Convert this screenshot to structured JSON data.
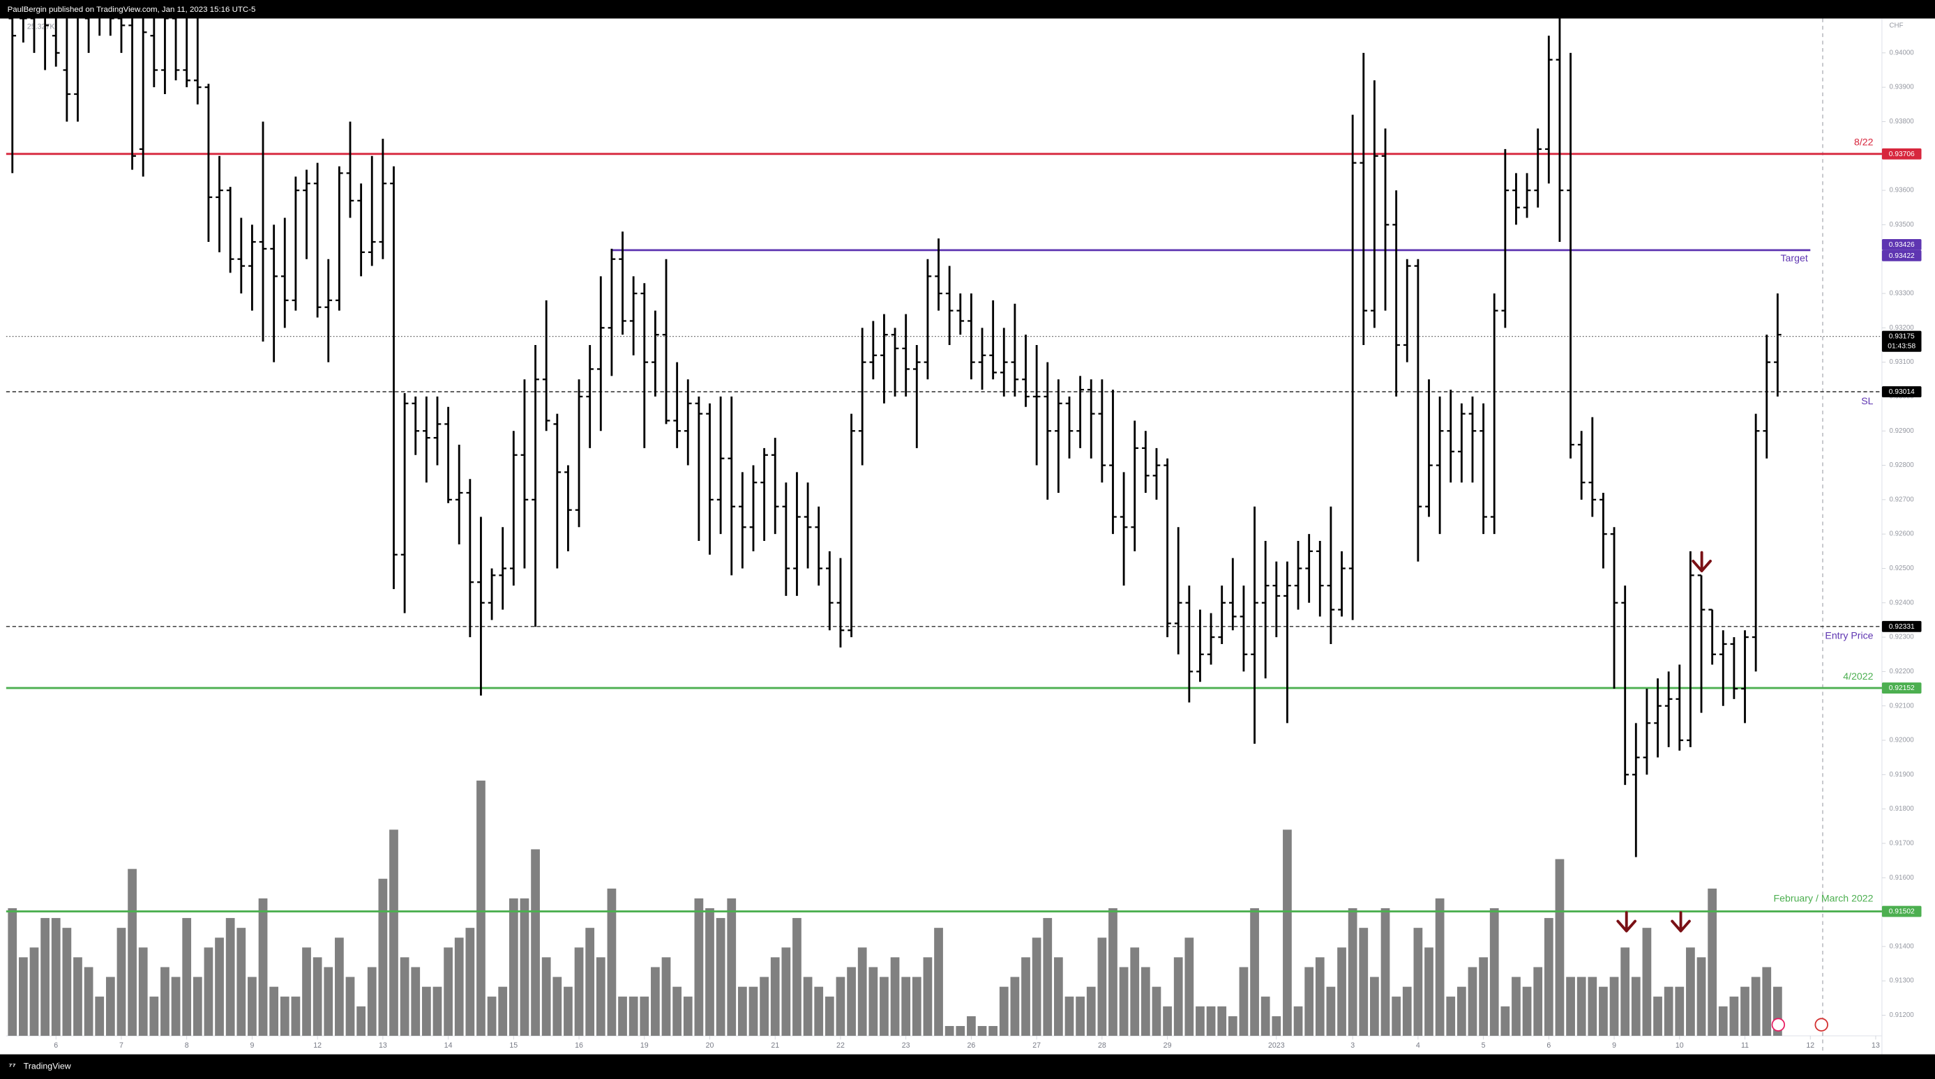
{
  "chart_data": {
    "type": "ohlc",
    "header": "PaulBergin published on TradingView.com, Jan 11, 2023 15:16 UTC-5",
    "currency": "CHF",
    "volume_label": "25.327K",
    "brand": "TradingView",
    "xlim": [
      -0.57,
      171.8
    ],
    "ylim": [
      0.9114,
      0.941
    ],
    "xticks": [
      {
        "value": 4,
        "label": "6"
      },
      {
        "value": 10,
        "label": "7"
      },
      {
        "value": 16,
        "label": "8"
      },
      {
        "value": 22,
        "label": "9"
      },
      {
        "value": 28,
        "label": "12"
      },
      {
        "value": 34,
        "label": "13"
      },
      {
        "value": 40,
        "label": "14"
      },
      {
        "value": 46,
        "label": "15"
      },
      {
        "value": 52,
        "label": "16"
      },
      {
        "value": 58,
        "label": "19"
      },
      {
        "value": 64,
        "label": "20"
      },
      {
        "value": 70,
        "label": "21"
      },
      {
        "value": 76,
        "label": "22"
      },
      {
        "value": 82,
        "label": "23"
      },
      {
        "value": 88,
        "label": "26"
      },
      {
        "value": 94,
        "label": "27"
      },
      {
        "value": 100,
        "label": "28"
      },
      {
        "value": 106,
        "label": "29"
      },
      {
        "value": 116,
        "label": "2023"
      },
      {
        "value": 123,
        "label": "3"
      },
      {
        "value": 129,
        "label": "4"
      },
      {
        "value": 135,
        "label": "5"
      },
      {
        "value": 141,
        "label": "6"
      },
      {
        "value": 147,
        "label": "9"
      },
      {
        "value": 153,
        "label": "10"
      },
      {
        "value": 159,
        "label": "11"
      },
      {
        "value": 165,
        "label": "12"
      },
      {
        "value": 171,
        "label": "13"
      }
    ],
    "yticks": [
      {
        "value": 0.912,
        "label": "0.91200"
      },
      {
        "value": 0.913,
        "label": "0.91300"
      },
      {
        "value": 0.914,
        "label": "0.91400"
      },
      {
        "value": 0.915,
        "label": "0.91500"
      },
      {
        "value": 0.916,
        "label": "0.91600"
      },
      {
        "value": 0.917,
        "label": "0.91700"
      },
      {
        "value": 0.918,
        "label": "0.91800"
      },
      {
        "value": 0.919,
        "label": "0.91900"
      },
      {
        "value": 0.92,
        "label": "0.92000"
      },
      {
        "value": 0.921,
        "label": "0.92100"
      },
      {
        "value": 0.922,
        "label": "0.92200"
      },
      {
        "value": 0.923,
        "label": "0.92300"
      },
      {
        "value": 0.924,
        "label": "0.92400"
      },
      {
        "value": 0.925,
        "label": "0.92500"
      },
      {
        "value": 0.926,
        "label": "0.92600"
      },
      {
        "value": 0.927,
        "label": "0.92700"
      },
      {
        "value": 0.928,
        "label": "0.92800"
      },
      {
        "value": 0.929,
        "label": "0.92900"
      },
      {
        "value": 0.93,
        "label": "0.93000"
      },
      {
        "value": 0.931,
        "label": "0.93100"
      },
      {
        "value": 0.932,
        "label": "0.93200"
      },
      {
        "value": 0.933,
        "label": "0.93300"
      },
      {
        "value": 0.934,
        "label": "0.93400"
      },
      {
        "value": 0.935,
        "label": "0.93500"
      },
      {
        "value": 0.936,
        "label": "0.93600"
      },
      {
        "value": 0.937,
        "label": "0.93700"
      },
      {
        "value": 0.938,
        "label": "0.93800"
      },
      {
        "value": 0.939,
        "label": "0.93900"
      },
      {
        "value": 0.94,
        "label": "0.94000"
      }
    ],
    "color": "#000000",
    "volume_color": "#808080",
    "levels": [
      {
        "value": 0.93706,
        "name": "8/22",
        "color": "#d7263d",
        "style": "solid"
      },
      {
        "value": 0.93426,
        "value2": 0.93422,
        "name": "Target",
        "color": "#5e35b1",
        "style": "solid"
      },
      {
        "value": 0.93175,
        "countdown": "01:43:58",
        "color": "#000000",
        "style": "dotted"
      },
      {
        "value": 0.93014,
        "name": "SL",
        "color": "#000000",
        "style": "dashed"
      },
      {
        "value": 0.92331,
        "name": "Entry Price",
        "color": "#000000",
        "style": "dashed"
      },
      {
        "value": 0.92152,
        "name": "4/2022",
        "color": "#4caf50",
        "style": "solid"
      },
      {
        "value": 0.91502,
        "name": "February / March 2022",
        "color": "#4caf50",
        "style": "solid"
      }
    ],
    "ohlc": [
      [
        0.941,
        0.942,
        0.9365,
        0.9405
      ],
      [
        0.941,
        0.9418,
        0.9403,
        0.941
      ],
      [
        0.941,
        0.9416,
        0.94,
        0.9412
      ],
      [
        0.9412,
        0.9418,
        0.9395,
        0.9408
      ],
      [
        0.9405,
        0.9415,
        0.9396,
        0.94
      ],
      [
        0.9395,
        0.9412,
        0.938,
        0.9388
      ],
      [
        0.9388,
        0.942,
        0.938,
        0.9412
      ],
      [
        0.941,
        0.9418,
        0.94,
        0.9412
      ],
      [
        0.9412,
        0.942,
        0.9405,
        0.9415
      ],
      [
        0.9415,
        0.9425,
        0.9405,
        0.941
      ],
      [
        0.941,
        0.942,
        0.94,
        0.9408
      ],
      [
        0.9408,
        0.9416,
        0.9366,
        0.937
      ],
      [
        0.9372,
        0.9418,
        0.9364,
        0.9406
      ],
      [
        0.9405,
        0.942,
        0.939,
        0.9395
      ],
      [
        0.9395,
        0.9418,
        0.9388,
        0.941
      ],
      [
        0.941,
        0.942,
        0.9392,
        0.9395
      ],
      [
        0.9395,
        0.9416,
        0.939,
        0.9392
      ],
      [
        0.9392,
        0.941,
        0.9385,
        0.939
      ],
      [
        0.939,
        0.9391,
        0.9345,
        0.9358
      ],
      [
        0.9358,
        0.937,
        0.9342,
        0.936
      ],
      [
        0.936,
        0.9361,
        0.9336,
        0.934
      ],
      [
        0.934,
        0.9352,
        0.933,
        0.9338
      ],
      [
        0.9338,
        0.935,
        0.9325,
        0.9345
      ],
      [
        0.9345,
        0.938,
        0.9316,
        0.9343
      ],
      [
        0.9343,
        0.935,
        0.931,
        0.9335
      ],
      [
        0.9335,
        0.9352,
        0.932,
        0.9328
      ],
      [
        0.9328,
        0.9364,
        0.9325,
        0.936
      ],
      [
        0.936,
        0.9366,
        0.934,
        0.9362
      ],
      [
        0.9362,
        0.9368,
        0.9323,
        0.9326
      ],
      [
        0.9326,
        0.934,
        0.931,
        0.9328
      ],
      [
        0.9328,
        0.9367,
        0.9325,
        0.9365
      ],
      [
        0.9365,
        0.938,
        0.9352,
        0.9357
      ],
      [
        0.9357,
        0.9362,
        0.9335,
        0.9342
      ],
      [
        0.9342,
        0.937,
        0.9338,
        0.9345
      ],
      [
        0.9345,
        0.9375,
        0.934,
        0.9362
      ],
      [
        0.9362,
        0.9367,
        0.9244,
        0.9254
      ],
      [
        0.9254,
        0.9301,
        0.9237,
        0.9298
      ],
      [
        0.9298,
        0.93,
        0.9283,
        0.929
      ],
      [
        0.929,
        0.93,
        0.9275,
        0.9288
      ],
      [
        0.9288,
        0.93,
        0.928,
        0.9292
      ],
      [
        0.9292,
        0.9297,
        0.9269,
        0.927
      ],
      [
        0.927,
        0.9286,
        0.9257,
        0.9272
      ],
      [
        0.9272,
        0.9276,
        0.923,
        0.9246
      ],
      [
        0.9246,
        0.9265,
        0.9213,
        0.924
      ],
      [
        0.924,
        0.925,
        0.9235,
        0.9248
      ],
      [
        0.9248,
        0.9262,
        0.9238,
        0.925
      ],
      [
        0.925,
        0.929,
        0.9245,
        0.9283
      ],
      [
        0.9283,
        0.9305,
        0.925,
        0.927
      ],
      [
        0.927,
        0.9315,
        0.9233,
        0.9305
      ],
      [
        0.9305,
        0.9328,
        0.929,
        0.9293
      ],
      [
        0.9292,
        0.9295,
        0.925,
        0.9278
      ],
      [
        0.9278,
        0.928,
        0.9255,
        0.9267
      ],
      [
        0.9267,
        0.9305,
        0.9262,
        0.93
      ],
      [
        0.93,
        0.9315,
        0.9285,
        0.9308
      ],
      [
        0.9308,
        0.9335,
        0.929,
        0.932
      ],
      [
        0.932,
        0.9343,
        0.9306,
        0.934
      ],
      [
        0.934,
        0.9348,
        0.9318,
        0.9322
      ],
      [
        0.9322,
        0.9335,
        0.9312,
        0.933
      ],
      [
        0.933,
        0.9333,
        0.9285,
        0.931
      ],
      [
        0.931,
        0.9325,
        0.93,
        0.9318
      ],
      [
        0.9318,
        0.934,
        0.9292,
        0.9293
      ],
      [
        0.9293,
        0.931,
        0.9285,
        0.929
      ],
      [
        0.929,
        0.9305,
        0.928,
        0.9298
      ],
      [
        0.9298,
        0.93,
        0.9258,
        0.9295
      ],
      [
        0.9295,
        0.9298,
        0.9254,
        0.927
      ],
      [
        0.927,
        0.93,
        0.926,
        0.9282
      ],
      [
        0.9282,
        0.93,
        0.9248,
        0.9268
      ],
      [
        0.9268,
        0.9278,
        0.925,
        0.9262
      ],
      [
        0.9262,
        0.928,
        0.9255,
        0.9275
      ],
      [
        0.9275,
        0.9285,
        0.9258,
        0.9283
      ],
      [
        0.9283,
        0.9288,
        0.926,
        0.9268
      ],
      [
        0.9268,
        0.9275,
        0.9242,
        0.925
      ],
      [
        0.925,
        0.9278,
        0.9242,
        0.9265
      ],
      [
        0.9265,
        0.9275,
        0.925,
        0.9262
      ],
      [
        0.9262,
        0.9268,
        0.9245,
        0.925
      ],
      [
        0.925,
        0.9255,
        0.9232,
        0.924
      ],
      [
        0.924,
        0.9253,
        0.9227,
        0.9232
      ],
      [
        0.9232,
        0.9295,
        0.923,
        0.929
      ],
      [
        0.929,
        0.932,
        0.928,
        0.931
      ],
      [
        0.931,
        0.9322,
        0.9305,
        0.9312
      ],
      [
        0.9312,
        0.9324,
        0.9298,
        0.9318
      ],
      [
        0.9318,
        0.932,
        0.93,
        0.9314
      ],
      [
        0.9314,
        0.9324,
        0.93,
        0.9308
      ],
      [
        0.9308,
        0.9315,
        0.9285,
        0.931
      ],
      [
        0.931,
        0.934,
        0.9305,
        0.9335
      ],
      [
        0.9335,
        0.9346,
        0.9325,
        0.933
      ],
      [
        0.933,
        0.9338,
        0.9315,
        0.9325
      ],
      [
        0.9325,
        0.933,
        0.9318,
        0.9322
      ],
      [
        0.9322,
        0.933,
        0.9305,
        0.931
      ],
      [
        0.931,
        0.932,
        0.9302,
        0.9312
      ],
      [
        0.9312,
        0.9328,
        0.9305,
        0.9307
      ],
      [
        0.9307,
        0.932,
        0.93,
        0.931
      ],
      [
        0.931,
        0.9327,
        0.93,
        0.9305
      ],
      [
        0.9305,
        0.9318,
        0.9297,
        0.93
      ],
      [
        0.93,
        0.9315,
        0.928,
        0.93
      ],
      [
        0.93,
        0.931,
        0.927,
        0.929
      ],
      [
        0.929,
        0.9305,
        0.9272,
        0.9298
      ],
      [
        0.9298,
        0.93,
        0.9282,
        0.929
      ],
      [
        0.929,
        0.9306,
        0.9285,
        0.9302
      ],
      [
        0.9302,
        0.9305,
        0.9282,
        0.9295
      ],
      [
        0.9295,
        0.9305,
        0.9275,
        0.928
      ],
      [
        0.928,
        0.9302,
        0.926,
        0.9265
      ],
      [
        0.9265,
        0.9278,
        0.9245,
        0.9262
      ],
      [
        0.9262,
        0.9293,
        0.9255,
        0.9285
      ],
      [
        0.9285,
        0.929,
        0.9272,
        0.9277
      ],
      [
        0.9277,
        0.9285,
        0.927,
        0.928
      ],
      [
        0.928,
        0.9282,
        0.923,
        0.9234
      ],
      [
        0.9234,
        0.9262,
        0.9225,
        0.924
      ],
      [
        0.924,
        0.9245,
        0.9211,
        0.922
      ],
      [
        0.922,
        0.9238,
        0.9217,
        0.9225
      ],
      [
        0.9225,
        0.9237,
        0.9222,
        0.923
      ],
      [
        0.923,
        0.9245,
        0.9228,
        0.924
      ],
      [
        0.924,
        0.9253,
        0.9232,
        0.9236
      ],
      [
        0.9236,
        0.9245,
        0.922,
        0.9225
      ],
      [
        0.9225,
        0.9268,
        0.9199,
        0.924
      ],
      [
        0.924,
        0.9258,
        0.9218,
        0.9245
      ],
      [
        0.9245,
        0.9252,
        0.923,
        0.9242
      ],
      [
        0.9242,
        0.9252,
        0.9205,
        0.9245
      ],
      [
        0.9245,
        0.9258,
        0.9238,
        0.925
      ],
      [
        0.925,
        0.926,
        0.924,
        0.9255
      ],
      [
        0.9255,
        0.9258,
        0.9236,
        0.9245
      ],
      [
        0.9245,
        0.9268,
        0.9228,
        0.9238
      ],
      [
        0.9238,
        0.9255,
        0.9236,
        0.925
      ],
      [
        0.925,
        0.9382,
        0.9235,
        0.9368
      ],
      [
        0.9368,
        0.94,
        0.9315,
        0.9325
      ],
      [
        0.9325,
        0.9392,
        0.932,
        0.937
      ],
      [
        0.937,
        0.9378,
        0.9325,
        0.935
      ],
      [
        0.935,
        0.936,
        0.93,
        0.9315
      ],
      [
        0.9315,
        0.934,
        0.931,
        0.9338
      ],
      [
        0.9338,
        0.934,
        0.9252,
        0.9268
      ],
      [
        0.9268,
        0.9305,
        0.9265,
        0.928
      ],
      [
        0.928,
        0.93,
        0.926,
        0.929
      ],
      [
        0.929,
        0.9302,
        0.9275,
        0.9284
      ],
      [
        0.9284,
        0.9298,
        0.9275,
        0.9295
      ],
      [
        0.9295,
        0.93,
        0.9275,
        0.929
      ],
      [
        0.929,
        0.9298,
        0.926,
        0.9265
      ],
      [
        0.9265,
        0.933,
        0.926,
        0.9325
      ],
      [
        0.9325,
        0.9372,
        0.932,
        0.936
      ],
      [
        0.936,
        0.9365,
        0.935,
        0.9355
      ],
      [
        0.9355,
        0.9365,
        0.9352,
        0.936
      ],
      [
        0.936,
        0.9378,
        0.9355,
        0.9372
      ],
      [
        0.9372,
        0.9405,
        0.9362,
        0.9398
      ],
      [
        0.9398,
        0.941,
        0.9345,
        0.936
      ],
      [
        0.936,
        0.94,
        0.9282,
        0.9286
      ],
      [
        0.9286,
        0.929,
        0.927,
        0.9275
      ],
      [
        0.9275,
        0.9294,
        0.9265,
        0.927
      ],
      [
        0.927,
        0.9272,
        0.925,
        0.926
      ],
      [
        0.926,
        0.9262,
        0.9215,
        0.924
      ],
      [
        0.924,
        0.9245,
        0.9187,
        0.919
      ],
      [
        0.919,
        0.9205,
        0.9166,
        0.9195
      ],
      [
        0.9195,
        0.9215,
        0.919,
        0.9205
      ],
      [
        0.9205,
        0.9218,
        0.9195,
        0.921
      ],
      [
        0.921,
        0.922,
        0.9198,
        0.9212
      ],
      [
        0.9212,
        0.9222,
        0.9197,
        0.92
      ],
      [
        0.92,
        0.9255,
        0.9198,
        0.9248
      ],
      [
        0.9248,
        0.9248,
        0.9208,
        0.9238
      ],
      [
        0.9238,
        0.9238,
        0.9222,
        0.9225
      ],
      [
        0.9225,
        0.9232,
        0.921,
        0.9228
      ],
      [
        0.9228,
        0.923,
        0.9212,
        0.9215
      ],
      [
        0.9215,
        0.9232,
        0.9205,
        0.923
      ],
      [
        0.923,
        0.9295,
        0.922,
        0.929
      ],
      [
        0.929,
        0.9318,
        0.9282,
        0.931
      ],
      [
        0.931,
        0.933,
        0.93,
        0.9318
      ]
    ],
    "volume": [
      13,
      8,
      9,
      12,
      12,
      11,
      8,
      7,
      4,
      6,
      11,
      17,
      9,
      4,
      7,
      6,
      12,
      6,
      9,
      10,
      12,
      11,
      6,
      14,
      5,
      4,
      4,
      9,
      8,
      7,
      10,
      6,
      3,
      7,
      16,
      21,
      8,
      7,
      5,
      5,
      9,
      10,
      11,
      26,
      4,
      5,
      14,
      14,
      19,
      8,
      6,
      5,
      9,
      11,
      8,
      15,
      4,
      4,
      4,
      7,
      8,
      5,
      4,
      14,
      13,
      12,
      14,
      5,
      5,
      6,
      8,
      9,
      12,
      6,
      5,
      4,
      6,
      7,
      9,
      7,
      6,
      8,
      6,
      6,
      8,
      11,
      1,
      1,
      2,
      1,
      1,
      5,
      6,
      8,
      10,
      12,
      8,
      4,
      4,
      5,
      10,
      13,
      7,
      9,
      7,
      5,
      3,
      8,
      10,
      3,
      3,
      3,
      2,
      7,
      13,
      4,
      2,
      21,
      3,
      7,
      8,
      5,
      9,
      13,
      11,
      6,
      13,
      4,
      5,
      11,
      9,
      14,
      4,
      5,
      7,
      8,
      13,
      3,
      6,
      5,
      7,
      12,
      18,
      6,
      6,
      6,
      5,
      6,
      9,
      6,
      11,
      4,
      5,
      5,
      9,
      8,
      15,
      3,
      4,
      5,
      6,
      7,
      5
    ]
  }
}
